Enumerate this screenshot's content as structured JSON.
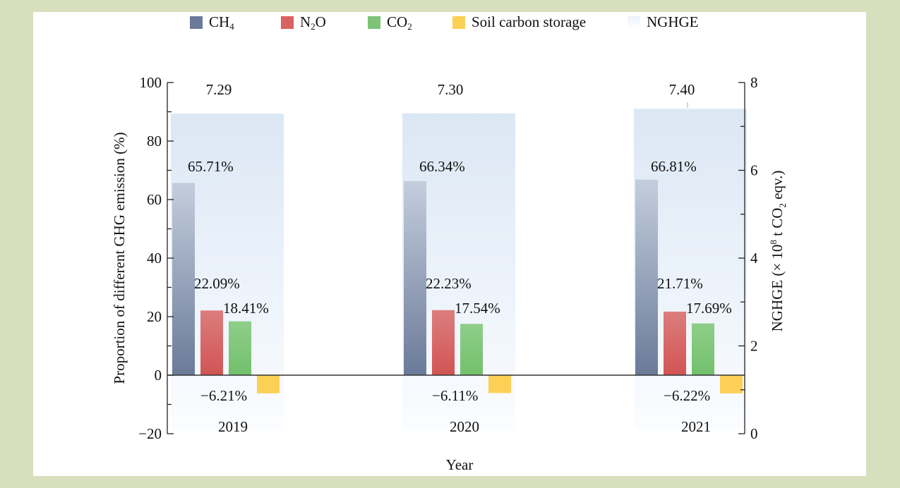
{
  "chart_data": {
    "type": "bar",
    "title": "",
    "categories": [
      "2019",
      "2020",
      "2021"
    ],
    "xlabel": "Year",
    "ylabel": "Proportion of different GHG emission (%)",
    "ylim": [
      -20,
      100
    ],
    "yticks": [
      -20,
      0,
      20,
      40,
      60,
      80,
      100
    ],
    "y2label_parts": {
      "pre": "NGHGE (× 10",
      "sup": "8",
      "mid": " t CO",
      "sub": "2",
      "post": " eqv.)"
    },
    "y2lim": [
      0,
      8
    ],
    "y2ticks": [
      0,
      2,
      4,
      6,
      8
    ],
    "grid": false,
    "legend_position": "top",
    "series": [
      {
        "name": "CH4",
        "label_main": "CH",
        "label_sub": "4",
        "label_post": "",
        "color": "#6b7a99",
        "color_top": "#c3cedd",
        "axis": "left",
        "values": [
          65.71,
          66.34,
          66.81
        ],
        "labels": [
          "65.71%",
          "66.34%",
          "66.81%"
        ]
      },
      {
        "name": "N2O",
        "label_main": "N",
        "label_sub": "2",
        "label_post": "O",
        "color": "#d45757",
        "color_top": "#dc7d7d",
        "axis": "left",
        "values": [
          22.09,
          22.23,
          21.71
        ],
        "labels": [
          "22.09%",
          "22.23%",
          "21.71%"
        ]
      },
      {
        "name": "CO2",
        "label_main": "CO",
        "label_sub": "2",
        "label_post": "",
        "color": "#74c26e",
        "color_top": "#8ccc88",
        "axis": "left",
        "values": [
          18.41,
          17.54,
          17.69
        ],
        "labels": [
          "18.41%",
          "17.54%",
          "17.69%"
        ]
      },
      {
        "name": "Soil carbon storage",
        "label_main": "Soil carbon storage",
        "label_sub": "",
        "label_post": "",
        "color": "#fcd055",
        "color_top": "#fcd055",
        "axis": "left",
        "values": [
          -6.21,
          -6.11,
          -6.22
        ],
        "labels": [
          "−6.21%",
          "−6.11%",
          "−6.22%"
        ]
      },
      {
        "name": "NGHGE",
        "label_main": "NGHGE",
        "label_sub": "",
        "label_post": "",
        "color": "#dde8f5",
        "color_top": "#dde8f5",
        "axis": "right",
        "values": [
          7.29,
          7.3,
          7.4
        ],
        "labels": [
          "7.29",
          "7.30",
          "7.40"
        ]
      }
    ]
  }
}
